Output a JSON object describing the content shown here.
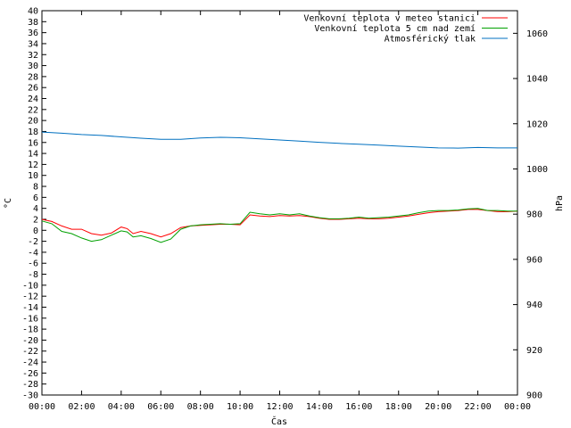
{
  "chart_data": {
    "type": "line",
    "title": "",
    "xlabel": "Čas",
    "ylabel_left": "°C",
    "ylabel_right": "hPa",
    "x_ticks": [
      "00:00",
      "02:00",
      "04:00",
      "06:00",
      "08:00",
      "10:00",
      "12:00",
      "14:00",
      "16:00",
      "18:00",
      "20:00",
      "22:00",
      "00:00"
    ],
    "x_range_hours": [
      0,
      24
    ],
    "ylim_left": [
      -30,
      40
    ],
    "ylim_right": [
      900,
      1070
    ],
    "y_left_ticks": [
      40,
      38,
      36,
      34,
      32,
      30,
      28,
      26,
      24,
      22,
      20,
      18,
      16,
      14,
      12,
      10,
      8,
      6,
      4,
      2,
      0,
      -2,
      -4,
      -6,
      -8,
      -10,
      -12,
      -14,
      -16,
      -18,
      -20,
      -22,
      -24,
      -26,
      -28,
      -30
    ],
    "y_right_ticks": [
      1060,
      1040,
      1020,
      1000,
      980,
      960,
      940,
      920,
      900
    ],
    "legend_position": "top-right",
    "series": [
      {
        "name": "Venkovní teplota v meteo stanici",
        "color": "#ff0000",
        "axis": "left",
        "x": [
          0,
          0.5,
          1,
          1.5,
          2,
          2.5,
          3,
          3.5,
          4,
          4.3,
          4.6,
          5,
          5.5,
          6,
          6.5,
          7,
          7.5,
          8,
          8.5,
          9,
          9.5,
          10,
          10.5,
          11,
          11.5,
          12,
          12.5,
          13,
          13.5,
          14,
          14.5,
          15,
          15.5,
          16,
          16.5,
          17,
          17.5,
          18,
          18.5,
          19,
          19.5,
          20,
          20.5,
          21,
          21.5,
          22,
          22.5,
          23,
          23.5,
          24
        ],
        "values": [
          2.0,
          1.6,
          0.8,
          0.2,
          0.2,
          -0.6,
          -0.9,
          -0.5,
          0.6,
          0.3,
          -0.6,
          -0.2,
          -0.6,
          -1.2,
          -0.6,
          0.5,
          0.8,
          0.9,
          1.0,
          1.1,
          1.1,
          1.0,
          2.8,
          2.6,
          2.5,
          2.7,
          2.6,
          2.7,
          2.5,
          2.2,
          2.0,
          2.0,
          2.1,
          2.2,
          2.1,
          2.1,
          2.2,
          2.4,
          2.6,
          2.9,
          3.2,
          3.4,
          3.5,
          3.6,
          3.8,
          3.8,
          3.6,
          3.4,
          3.4,
          3.5
        ]
      },
      {
        "name": "Venkovní teplota 5 cm nad zemí",
        "color": "#00a000",
        "axis": "left",
        "x": [
          0,
          0.5,
          1,
          1.5,
          2,
          2.5,
          3,
          3.5,
          4,
          4.3,
          4.6,
          5,
          5.5,
          6,
          6.5,
          7,
          7.5,
          8,
          8.5,
          9,
          9.5,
          10,
          10.5,
          11,
          11.5,
          12,
          12.5,
          13,
          13.5,
          14,
          14.5,
          15,
          15.5,
          16,
          16.5,
          17,
          17.5,
          18,
          18.5,
          19,
          19.5,
          20,
          20.5,
          21,
          21.5,
          22,
          22.5,
          23,
          23.5,
          24
        ],
        "values": [
          1.7,
          1.2,
          -0.2,
          -0.6,
          -1.4,
          -2.0,
          -1.7,
          -0.9,
          -0.1,
          -0.3,
          -1.2,
          -1.0,
          -1.5,
          -2.2,
          -1.6,
          0.2,
          0.8,
          1.0,
          1.1,
          1.2,
          1.1,
          1.2,
          3.3,
          3.0,
          2.8,
          3.0,
          2.8,
          3.0,
          2.6,
          2.3,
          2.1,
          2.1,
          2.2,
          2.4,
          2.2,
          2.3,
          2.4,
          2.6,
          2.8,
          3.2,
          3.5,
          3.6,
          3.6,
          3.7,
          3.9,
          4.0,
          3.6,
          3.6,
          3.5,
          3.5
        ]
      },
      {
        "name": "Atmosférický tlak",
        "color": "#0070c0",
        "axis": "right",
        "x": [
          0,
          1,
          2,
          3,
          4,
          5,
          6,
          7,
          8,
          9,
          10,
          11,
          12,
          13,
          14,
          15,
          16,
          17,
          18,
          19,
          20,
          21,
          22,
          23,
          24
        ],
        "values": [
          1016.3,
          1015.8,
          1015.2,
          1014.8,
          1014.2,
          1013.6,
          1013.1,
          1013.1,
          1013.7,
          1014.0,
          1013.8,
          1013.3,
          1012.8,
          1012.3,
          1011.8,
          1011.3,
          1010.9,
          1010.5,
          1010.1,
          1009.7,
          1009.3,
          1009.2,
          1009.5,
          1009.3,
          1009.3
        ]
      }
    ]
  }
}
